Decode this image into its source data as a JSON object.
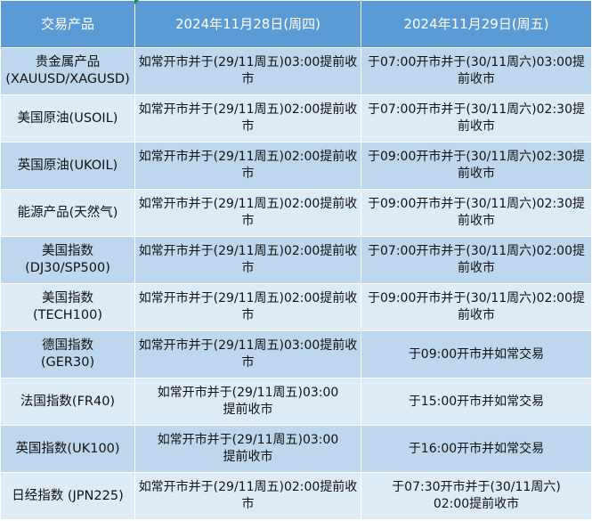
{
  "header": [
    "交易产品",
    "2024年11月28日(周四)",
    "2024年11月29日(周五)"
  ],
  "rows": [
    {
      "product": "贵金属产品\n(XAUUSD/XAGUSD)",
      "d28": "如常开市并于(29/11周五)03:00提前收市",
      "d29": "于07:00开市并于(30/11周六)03:00提前收市"
    },
    {
      "product": "美国原油(USOIL)",
      "d28": "如常开市并于(29/11周五)02:00提前收市",
      "d29": "于07:00开市并于(30/11周六)02:30提前收市"
    },
    {
      "product": "英国原油(UKOIL)",
      "d28": "如常开市并于(29/11周五)02:00提前收市",
      "d29": "于09:00开市并于(30/11周六)02:30提前收市"
    },
    {
      "product": "能源产品(天然气)",
      "d28": "如常开市并于(29/11周五)02:00提前收市",
      "d29": "于09:00开市并于(30/11周六)02:30提前收市"
    },
    {
      "product": "美国指数\n(DJ30/SP500)",
      "d28": "如常开市并于(29/11周五)02:00提前收市",
      "d29": "于07:00开市并于(30/11周六)02:00提前收市"
    },
    {
      "product": "美国指数\n(TECH100)",
      "d28": "如常开市并于(29/11周五)02:00提前收市",
      "d29": "于09:00开市并于(30/11周六)02:00提前收市"
    },
    {
      "product": "德国指数\n(GER30)",
      "d28": "如常开市并于(29/11周五)03:00提前收市",
      "d29": "于09:00开市并如常交易"
    },
    {
      "product": "法国指数(FR40)",
      "d28": "如常开市并于(29/11周五)03:00\n提前收市",
      "d29": "于15:00开市并如常交易"
    },
    {
      "product": "英国指数(UK100)",
      "d28": "如常开市并于(29/11周五)03:00\n提前收市",
      "d29": "于16:00开市并如常交易"
    },
    {
      "product": "日经指数 (JPN225)",
      "d28": "如常开市并于(29/11周五)02:00提前收市",
      "d29": "于07:30开市并于(30/11周六)\n02:00提前收市"
    }
  ]
}
